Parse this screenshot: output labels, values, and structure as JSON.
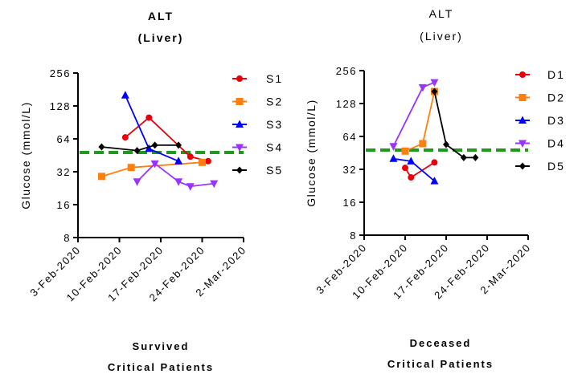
{
  "chart_data": [
    {
      "type": "line",
      "title": "ALT",
      "subtitle": "(Liver)",
      "title_bold": true,
      "ylabel": "Glucose (mmol/L)",
      "yscale": "log2",
      "ylim": [
        8,
        256
      ],
      "yticks": [
        "8",
        "16",
        "32",
        "64",
        "128",
        "256"
      ],
      "xlim": [
        "2020-02-03",
        "2020-03-02"
      ],
      "xticks": [
        "3-Feb-2020",
        "10-Feb-2020",
        "17-Feb-2020",
        "24-Feb-2020",
        "2-Mar-2020"
      ],
      "xlabel": [
        "Survived",
        "Critical Patients"
      ],
      "reference_line": {
        "y": 48,
        "color": "#1e9b1e",
        "style": "dashed"
      },
      "legend_position": "right",
      "grid": false,
      "series": [
        {
          "name": "S1",
          "color": "#e8000b",
          "marker": "circle",
          "points": [
            [
              "2020-02-11",
              66
            ],
            [
              "2020-02-15",
              100
            ],
            [
              "2020-02-22",
              44
            ],
            [
              "2020-02-25",
              40
            ]
          ]
        },
        {
          "name": "S2",
          "color": "#ff7f0e",
          "marker": "square",
          "points": [
            [
              "2020-02-07",
              29
            ],
            [
              "2020-02-12",
              35
            ],
            [
              "2020-02-24",
              39
            ]
          ]
        },
        {
          "name": "S3",
          "color": "#0000ff",
          "marker": "triangle-up",
          "points": [
            [
              "2020-02-11",
              160
            ],
            [
              "2020-02-15",
              52
            ],
            [
              "2020-02-20",
              40
            ]
          ]
        },
        {
          "name": "S4",
          "color": "#9933ff",
          "marker": "triangle-down",
          "points": [
            [
              "2020-02-13",
              26
            ],
            [
              "2020-02-16",
              38
            ],
            [
              "2020-02-20",
              26
            ],
            [
              "2020-02-22",
              23.5
            ],
            [
              "2020-02-26",
              25
            ]
          ]
        },
        {
          "name": "S5",
          "color": "#000000",
          "marker": "diamond",
          "points": [
            [
              "2020-02-07",
              54
            ],
            [
              "2020-02-13",
              50
            ],
            [
              "2020-02-16",
              56
            ],
            [
              "2020-02-20",
              56
            ]
          ]
        }
      ]
    },
    {
      "type": "line",
      "title": "ALT",
      "subtitle": "(Liver)",
      "title_bold": false,
      "ylabel": "Glucose (mmol/L)",
      "yscale": "log2",
      "ylim": [
        8,
        256
      ],
      "yticks": [
        "8",
        "16",
        "32",
        "64",
        "128",
        "256"
      ],
      "xlim": [
        "2020-02-03",
        "2020-03-02"
      ],
      "xticks": [
        "3-Feb-2020",
        "10-Feb-2020",
        "17-Feb-2020",
        "24-Feb-2020",
        "2-Mar-2020"
      ],
      "xlabel": [
        "Deceased",
        "Critical Patients"
      ],
      "reference_line": {
        "y": 48,
        "color": "#1e9b1e",
        "style": "dashed"
      },
      "legend_position": "right",
      "grid": false,
      "series": [
        {
          "name": "D1",
          "color": "#e8000b",
          "marker": "circle",
          "points": [
            [
              "2020-02-10",
              33
            ],
            [
              "2020-02-11",
              27
            ],
            [
              "2020-02-15",
              37
            ]
          ]
        },
        {
          "name": "D2",
          "color": "#ff7f0e",
          "marker": "square",
          "points": [
            [
              "2020-02-10",
              47
            ],
            [
              "2020-02-13",
              55
            ],
            [
              "2020-02-15",
              165
            ]
          ]
        },
        {
          "name": "D3",
          "color": "#0000ff",
          "marker": "triangle-up",
          "points": [
            [
              "2020-02-08",
              40
            ],
            [
              "2020-02-11",
              38
            ],
            [
              "2020-02-15",
              25
            ]
          ]
        },
        {
          "name": "D4",
          "color": "#9933ff",
          "marker": "triangle-down",
          "points": [
            [
              "2020-02-08",
              52
            ],
            [
              "2020-02-13",
              180
            ],
            [
              "2020-02-15",
              200
            ]
          ]
        },
        {
          "name": "D5",
          "color": "#000000",
          "marker": "diamond",
          "points": [
            [
              "2020-02-15",
              165
            ],
            [
              "2020-02-17",
              54
            ],
            [
              "2020-02-20",
              41
            ],
            [
              "2020-02-22",
              41
            ]
          ]
        }
      ]
    }
  ]
}
